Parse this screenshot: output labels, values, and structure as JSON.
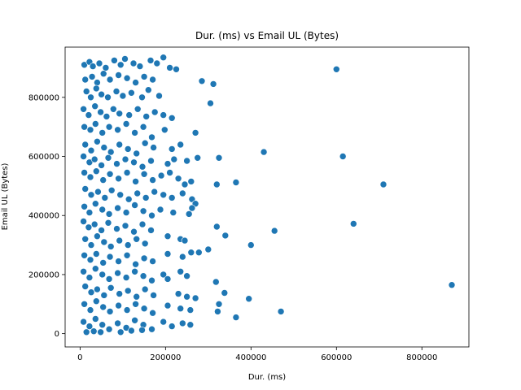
{
  "chart_data": {
    "type": "scatter",
    "title": "Dur. (ms) vs Email UL (Bytes)",
    "xlabel": "Dur. (ms)",
    "ylabel": "Email UL (Bytes)",
    "xlim": [
      -35000,
      910000
    ],
    "ylim": [
      -45000,
      970000
    ],
    "xticks": [
      0,
      200000,
      400000,
      600000,
      800000
    ],
    "xtick_labels": [
      "0",
      "200000",
      "400000",
      "600000",
      "800000"
    ],
    "yticks": [
      0,
      200000,
      400000,
      600000,
      800000
    ],
    "ytick_labels": [
      "0",
      "200000",
      "400000",
      "600000",
      "800000"
    ],
    "grid": false,
    "legend": "none",
    "marker_color": "#1f77b4",
    "marker_edge": "#ffffff",
    "points": [
      [
        10000,
        910000
      ],
      [
        22000,
        920000
      ],
      [
        30000,
        905000
      ],
      [
        45000,
        915000
      ],
      [
        60000,
        900000
      ],
      [
        80000,
        925000
      ],
      [
        95000,
        910000
      ],
      [
        105000,
        930000
      ],
      [
        125000,
        915000
      ],
      [
        140000,
        905000
      ],
      [
        165000,
        925000
      ],
      [
        180000,
        915000
      ],
      [
        195000,
        935000
      ],
      [
        210000,
        900000
      ],
      [
        225000,
        895000
      ],
      [
        12000,
        860000
      ],
      [
        28000,
        870000
      ],
      [
        40000,
        850000
      ],
      [
        55000,
        880000
      ],
      [
        70000,
        860000
      ],
      [
        90000,
        875000
      ],
      [
        110000,
        865000
      ],
      [
        130000,
        850000
      ],
      [
        150000,
        870000
      ],
      [
        170000,
        860000
      ],
      [
        285000,
        855000
      ],
      [
        312000,
        845000
      ],
      [
        600000,
        895000
      ],
      [
        15000,
        820000
      ],
      [
        25000,
        800000
      ],
      [
        38000,
        830000
      ],
      [
        50000,
        810000
      ],
      [
        65000,
        800000
      ],
      [
        85000,
        820000
      ],
      [
        100000,
        805000
      ],
      [
        120000,
        815000
      ],
      [
        145000,
        800000
      ],
      [
        160000,
        825000
      ],
      [
        185000,
        805000
      ],
      [
        305000,
        780000
      ],
      [
        8000,
        760000
      ],
      [
        20000,
        740000
      ],
      [
        35000,
        770000
      ],
      [
        48000,
        750000
      ],
      [
        62000,
        735000
      ],
      [
        78000,
        760000
      ],
      [
        92000,
        745000
      ],
      [
        115000,
        740000
      ],
      [
        135000,
        760000
      ],
      [
        155000,
        735000
      ],
      [
        175000,
        750000
      ],
      [
        195000,
        740000
      ],
      [
        215000,
        730000
      ],
      [
        10000,
        700000
      ],
      [
        24000,
        690000
      ],
      [
        36000,
        710000
      ],
      [
        52000,
        680000
      ],
      [
        68000,
        700000
      ],
      [
        88000,
        690000
      ],
      [
        108000,
        710000
      ],
      [
        128000,
        680000
      ],
      [
        148000,
        700000
      ],
      [
        168000,
        665000
      ],
      [
        198000,
        690000
      ],
      [
        270000,
        680000
      ],
      [
        12000,
        640000
      ],
      [
        26000,
        620000
      ],
      [
        40000,
        650000
      ],
      [
        56000,
        630000
      ],
      [
        72000,
        615000
      ],
      [
        92000,
        640000
      ],
      [
        112000,
        625000
      ],
      [
        132000,
        610000
      ],
      [
        152000,
        645000
      ],
      [
        172000,
        630000
      ],
      [
        215000,
        625000
      ],
      [
        235000,
        640000
      ],
      [
        430000,
        615000
      ],
      [
        8000,
        600000
      ],
      [
        22000,
        580000
      ],
      [
        34000,
        590000
      ],
      [
        50000,
        570000
      ],
      [
        66000,
        595000
      ],
      [
        86000,
        575000
      ],
      [
        106000,
        590000
      ],
      [
        126000,
        580000
      ],
      [
        146000,
        565000
      ],
      [
        166000,
        585000
      ],
      [
        205000,
        575000
      ],
      [
        220000,
        590000
      ],
      [
        250000,
        585000
      ],
      [
        275000,
        595000
      ],
      [
        325000,
        595000
      ],
      [
        615000,
        600000
      ],
      [
        10000,
        545000
      ],
      [
        24000,
        530000
      ],
      [
        38000,
        550000
      ],
      [
        54000,
        520000
      ],
      [
        70000,
        540000
      ],
      [
        90000,
        525000
      ],
      [
        110000,
        545000
      ],
      [
        130000,
        515000
      ],
      [
        150000,
        540000
      ],
      [
        170000,
        520000
      ],
      [
        190000,
        535000
      ],
      [
        210000,
        545000
      ],
      [
        230000,
        525000
      ],
      [
        245000,
        505000
      ],
      [
        260000,
        515000
      ],
      [
        320000,
        505000
      ],
      [
        365000,
        512000
      ],
      [
        710000,
        505000
      ],
      [
        12000,
        490000
      ],
      [
        26000,
        470000
      ],
      [
        42000,
        480000
      ],
      [
        58000,
        460000
      ],
      [
        74000,
        485000
      ],
      [
        94000,
        470000
      ],
      [
        114000,
        455000
      ],
      [
        134000,
        475000
      ],
      [
        154000,
        460000
      ],
      [
        174000,
        480000
      ],
      [
        195000,
        470000
      ],
      [
        215000,
        460000
      ],
      [
        240000,
        475000
      ],
      [
        262000,
        455000
      ],
      [
        270000,
        440000
      ],
      [
        10000,
        430000
      ],
      [
        22000,
        410000
      ],
      [
        36000,
        440000
      ],
      [
        52000,
        420000
      ],
      [
        68000,
        405000
      ],
      [
        88000,
        425000
      ],
      [
        108000,
        410000
      ],
      [
        128000,
        435000
      ],
      [
        148000,
        415000
      ],
      [
        168000,
        400000
      ],
      [
        188000,
        420000
      ],
      [
        218000,
        410000
      ],
      [
        255000,
        405000
      ],
      [
        262000,
        425000
      ],
      [
        8000,
        380000
      ],
      [
        20000,
        360000
      ],
      [
        34000,
        370000
      ],
      [
        50000,
        350000
      ],
      [
        66000,
        375000
      ],
      [
        86000,
        355000
      ],
      [
        106000,
        365000
      ],
      [
        126000,
        345000
      ],
      [
        146000,
        370000
      ],
      [
        166000,
        350000
      ],
      [
        320000,
        362000
      ],
      [
        640000,
        372000
      ],
      [
        455000,
        348000
      ],
      [
        12000,
        320000
      ],
      [
        26000,
        300000
      ],
      [
        40000,
        330000
      ],
      [
        56000,
        310000
      ],
      [
        72000,
        295000
      ],
      [
        92000,
        315000
      ],
      [
        112000,
        300000
      ],
      [
        132000,
        320000
      ],
      [
        152000,
        305000
      ],
      [
        205000,
        330000
      ],
      [
        235000,
        320000
      ],
      [
        245000,
        315000
      ],
      [
        340000,
        332000
      ],
      [
        400000,
        300000
      ],
      [
        10000,
        265000
      ],
      [
        24000,
        250000
      ],
      [
        38000,
        270000
      ],
      [
        54000,
        240000
      ],
      [
        70000,
        260000
      ],
      [
        90000,
        245000
      ],
      [
        110000,
        265000
      ],
      [
        130000,
        235000
      ],
      [
        150000,
        255000
      ],
      [
        170000,
        245000
      ],
      [
        205000,
        270000
      ],
      [
        240000,
        260000
      ],
      [
        260000,
        275000
      ],
      [
        278000,
        275000
      ],
      [
        300000,
        285000
      ],
      [
        8000,
        210000
      ],
      [
        22000,
        190000
      ],
      [
        36000,
        220000
      ],
      [
        52000,
        200000
      ],
      [
        68000,
        185000
      ],
      [
        88000,
        205000
      ],
      [
        108000,
        190000
      ],
      [
        128000,
        210000
      ],
      [
        148000,
        195000
      ],
      [
        168000,
        180000
      ],
      [
        195000,
        200000
      ],
      [
        205000,
        185000
      ],
      [
        235000,
        210000
      ],
      [
        250000,
        195000
      ],
      [
        12000,
        160000
      ],
      [
        26000,
        140000
      ],
      [
        40000,
        150000
      ],
      [
        56000,
        130000
      ],
      [
        72000,
        155000
      ],
      [
        92000,
        135000
      ],
      [
        112000,
        145000
      ],
      [
        132000,
        125000
      ],
      [
        152000,
        150000
      ],
      [
        172000,
        130000
      ],
      [
        230000,
        135000
      ],
      [
        250000,
        125000
      ],
      [
        270000,
        120000
      ],
      [
        318000,
        175000
      ],
      [
        338000,
        138000
      ],
      [
        870000,
        165000
      ],
      [
        10000,
        100000
      ],
      [
        24000,
        80000
      ],
      [
        38000,
        110000
      ],
      [
        54000,
        90000
      ],
      [
        70000,
        75000
      ],
      [
        90000,
        95000
      ],
      [
        110000,
        80000
      ],
      [
        130000,
        100000
      ],
      [
        150000,
        85000
      ],
      [
        170000,
        70000
      ],
      [
        205000,
        95000
      ],
      [
        235000,
        85000
      ],
      [
        258000,
        80000
      ],
      [
        325000,
        100000
      ],
      [
        395000,
        118000
      ],
      [
        8000,
        40000
      ],
      [
        22000,
        25000
      ],
      [
        36000,
        50000
      ],
      [
        52000,
        30000
      ],
      [
        68000,
        15000
      ],
      [
        88000,
        35000
      ],
      [
        108000,
        20000
      ],
      [
        128000,
        45000
      ],
      [
        148000,
        30000
      ],
      [
        168000,
        15000
      ],
      [
        195000,
        40000
      ],
      [
        215000,
        25000
      ],
      [
        240000,
        35000
      ],
      [
        258000,
        30000
      ],
      [
        322000,
        75000
      ],
      [
        365000,
        55000
      ],
      [
        470000,
        75000
      ],
      [
        15000,
        5000
      ],
      [
        32000,
        8000
      ],
      [
        48000,
        5000
      ],
      [
        95000,
        5000
      ],
      [
        120000,
        10000
      ],
      [
        145000,
        12000
      ]
    ]
  }
}
